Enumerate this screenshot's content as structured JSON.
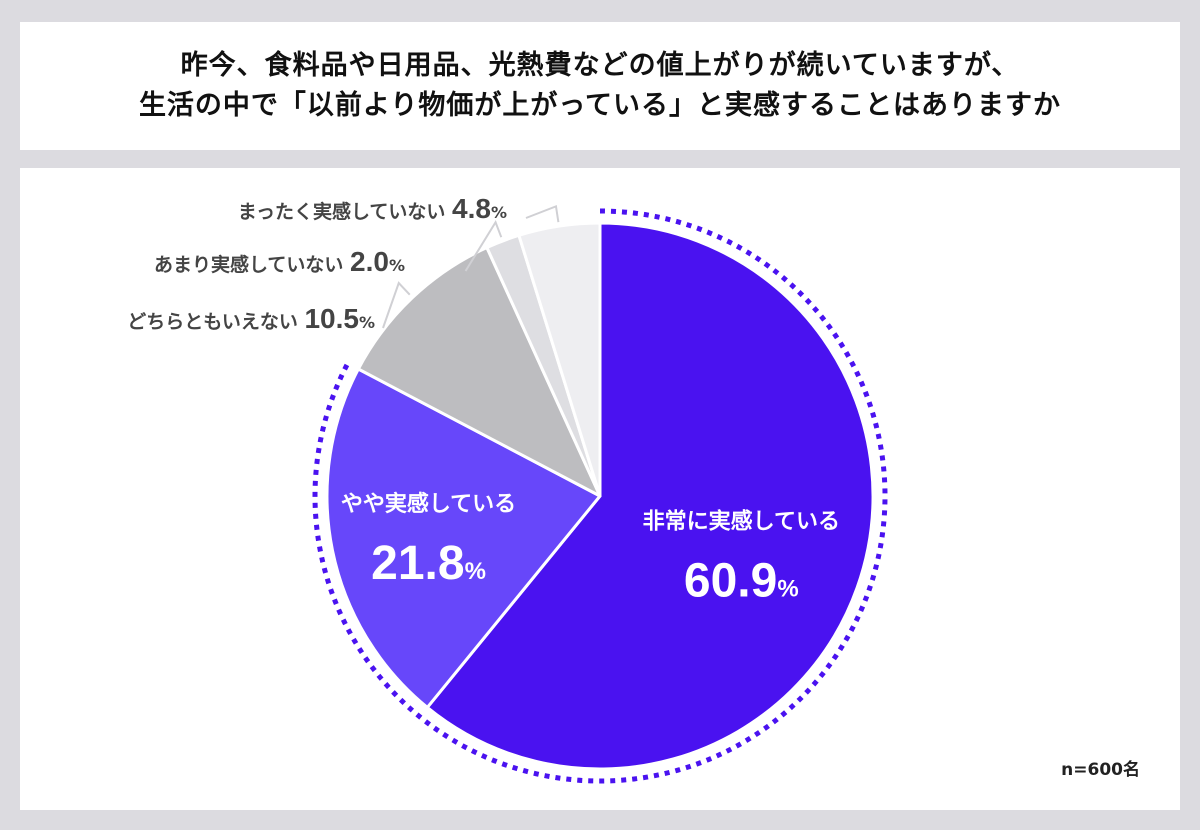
{
  "title": {
    "line1": "昨今、食料品や日用品、光熱費などの値上がりが続いていますが、",
    "line2": "生活の中で「以前より物価が上がっている」と実感することはありますか"
  },
  "sample_size": "n=600名",
  "chart_data": {
    "type": "pie",
    "start": "12 o'clock",
    "direction": "clockwise",
    "highlight": "dotted purple outline around the 「実感している」 slices",
    "slices": [
      {
        "label": "非常に実感している",
        "value": 60.9,
        "display": "60.9",
        "unit": "%",
        "color": "#4a12f0",
        "label_position": "inside"
      },
      {
        "label": "やや実感している",
        "value": 21.8,
        "display": "21.8",
        "unit": "%",
        "color": "#6747fa",
        "label_position": "inside"
      },
      {
        "label": "どちらともいえない",
        "value": 10.5,
        "display": "10.5",
        "unit": "%",
        "color": "#bdbdc0",
        "label_position": "outside"
      },
      {
        "label": "あまり実感していない",
        "value": 2.0,
        "display": "2.0",
        "unit": "%",
        "color": "#dedee2",
        "label_position": "outside"
      },
      {
        "label": "まったく実感していない",
        "value": 4.8,
        "display": "4.8",
        "unit": "%",
        "color": "#eeeef1",
        "label_position": "outside"
      }
    ]
  }
}
